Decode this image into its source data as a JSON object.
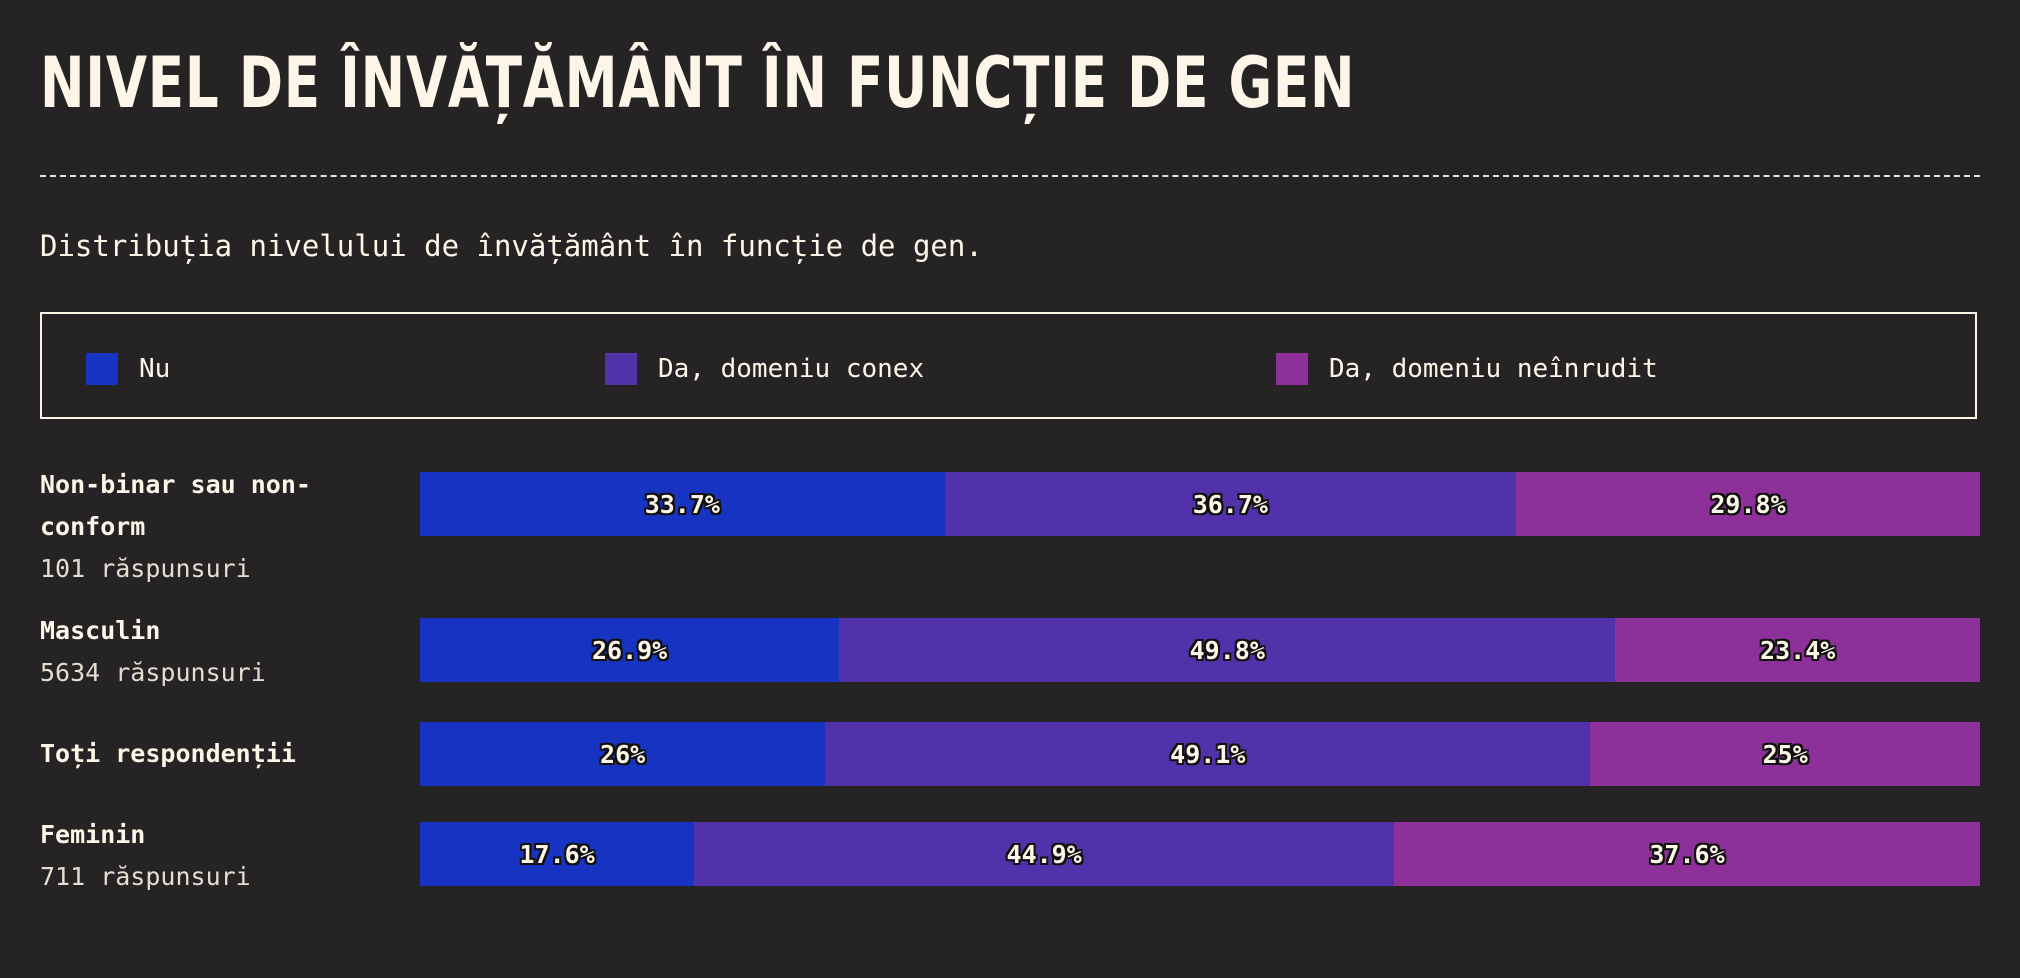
{
  "title": "NIVEL DE ÎNVĂȚĂMÂNT ÎN FUNCȚIE DE GEN",
  "subtitle": "Distribuția nivelului de învățământ în funcție de gen.",
  "colors": {
    "background": "#262324",
    "text": "#fdf6e8",
    "nu": "#1633c1",
    "conex": "#5232ab",
    "neinrudit": "#8e3099"
  },
  "chart_data": {
    "type": "bar",
    "orientation": "horizontal",
    "stacked": true,
    "percent": true,
    "title": "NIVEL DE ÎNVĂȚĂMÂNT ÎN FUNCȚIE DE GEN",
    "subtitle": "Distribuția nivelului de învățământ în funcție de gen.",
    "legend_position": "top",
    "series": [
      {
        "name": "Nu",
        "color": "#1633c1"
      },
      {
        "name": "Da, domeniu conex",
        "color": "#5232ab"
      },
      {
        "name": "Da, domeniu neînrudit",
        "color": "#8e3099"
      }
    ],
    "rows": [
      {
        "category": "Non-binar sau non-conform",
        "count_label": "101 răspunsuri",
        "values": [
          33.7,
          36.7,
          29.8
        ],
        "labels": [
          "33.7%",
          "36.7%",
          "29.8%"
        ]
      },
      {
        "category": "Masculin",
        "count_label": "5634 răspunsuri",
        "values": [
          26.9,
          49.8,
          23.4
        ],
        "labels": [
          "26.9%",
          "49.8%",
          "23.4%"
        ]
      },
      {
        "category": "Toți respondenții",
        "count_label": "",
        "values": [
          26,
          49.1,
          25
        ],
        "labels": [
          "26%",
          "49.1%",
          "25%"
        ]
      },
      {
        "category": "Feminin",
        "count_label": "711 răspunsuri",
        "values": [
          17.6,
          44.9,
          37.6
        ],
        "labels": [
          "17.6%",
          "44.9%",
          "37.6%"
        ]
      }
    ]
  }
}
